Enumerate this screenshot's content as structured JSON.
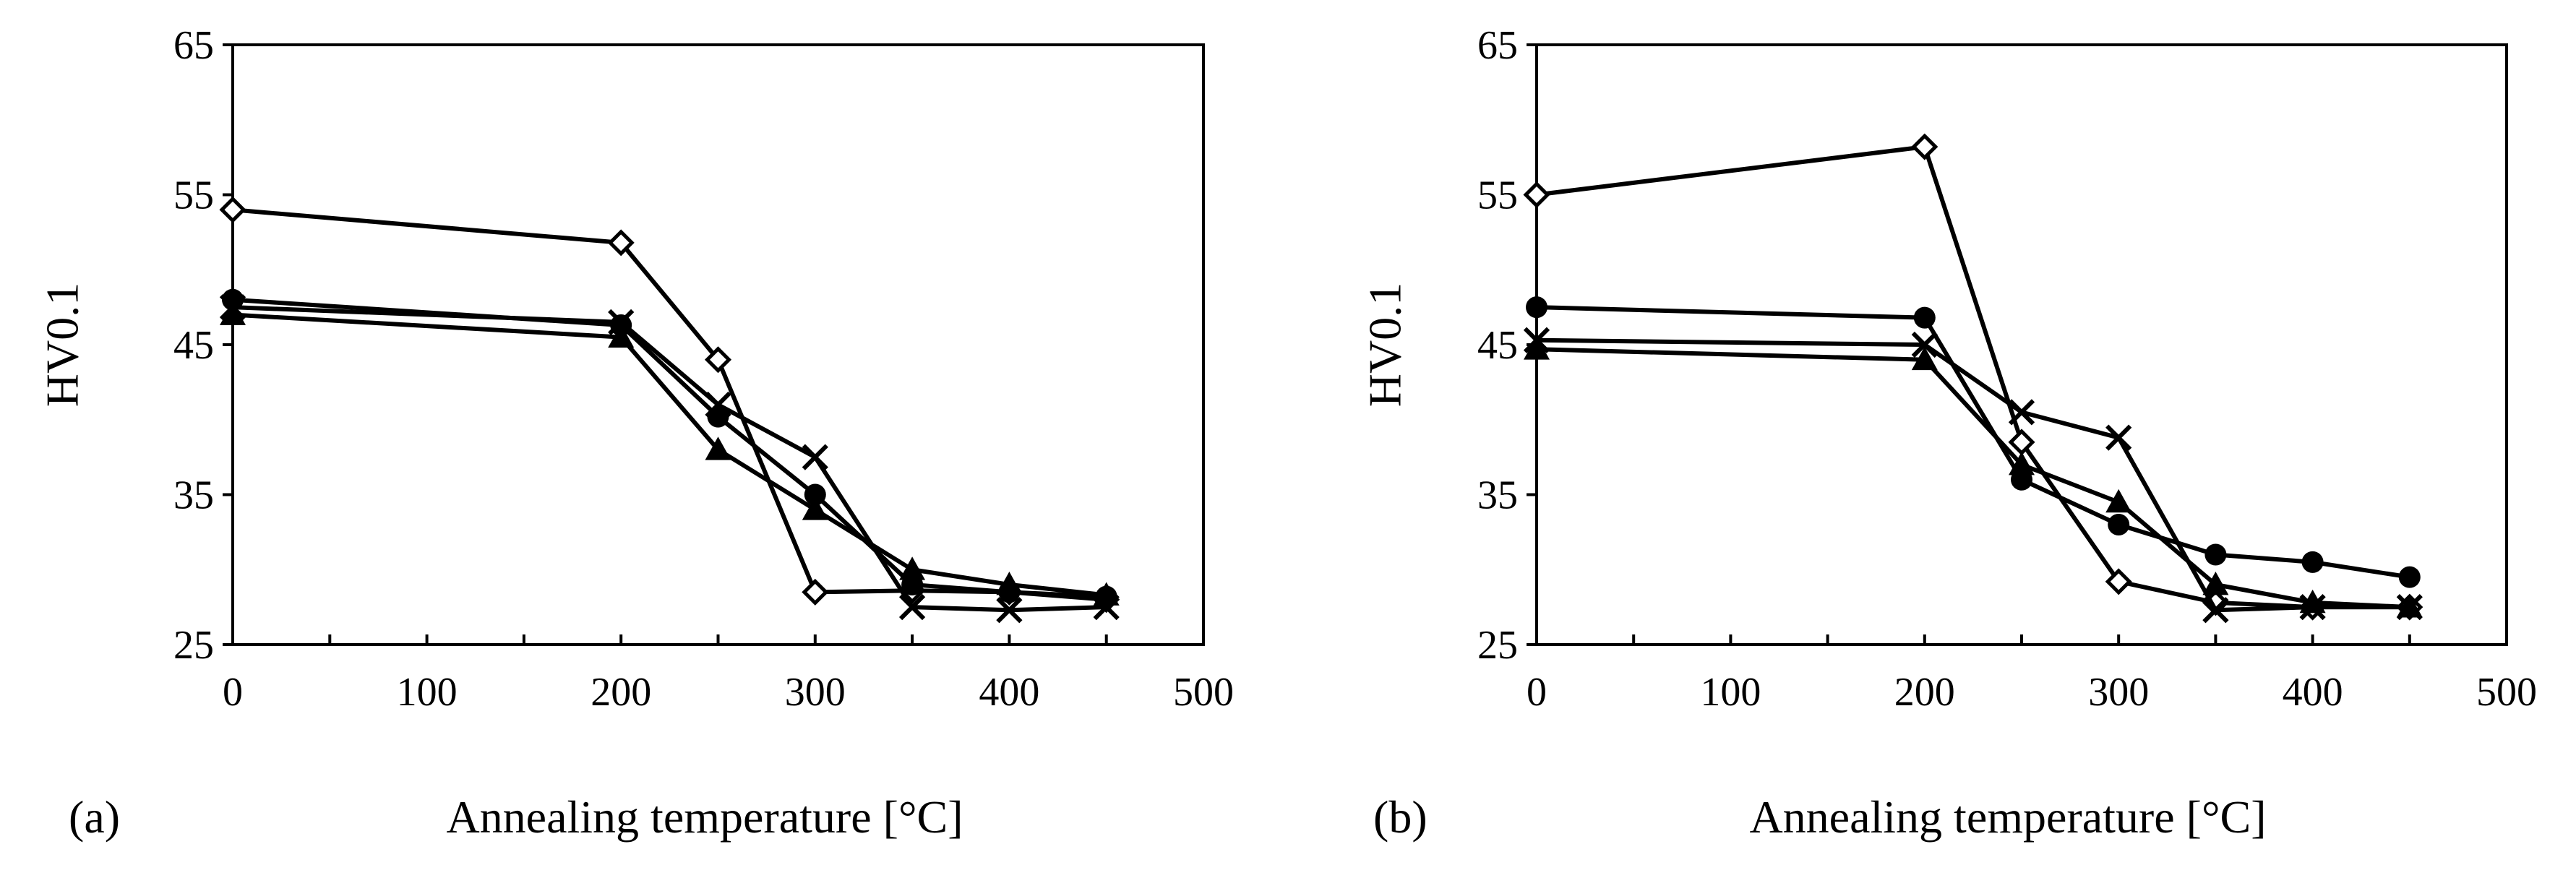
{
  "chart_data": [
    {
      "type": "line",
      "panel_label": "(a)",
      "xlabel": "Annealing temperature [°C]",
      "ylabel": "HV0.1",
      "xlim": [
        0,
        500
      ],
      "ylim": [
        25,
        65
      ],
      "xticks": [
        0,
        100,
        200,
        300,
        400,
        500
      ],
      "yticks": [
        25,
        35,
        45,
        55,
        65
      ],
      "grid": false,
      "series": [
        {
          "name": "open diamond",
          "marker": "diamond-open",
          "x": [
            0,
            200,
            250,
            300,
            350,
            400,
            450
          ],
          "y": [
            54,
            51.8,
            44,
            28.5,
            28.6,
            28.5,
            28
          ]
        },
        {
          "name": "filled circle",
          "marker": "circle",
          "x": [
            0,
            200,
            250,
            300,
            350,
            400,
            450
          ],
          "y": [
            48,
            46.3,
            40.2,
            35,
            29,
            28.5,
            28.2
          ]
        },
        {
          "name": "filled triangle",
          "marker": "triangle",
          "x": [
            0,
            200,
            250,
            300,
            350,
            400,
            450
          ],
          "y": [
            47,
            45.5,
            38,
            34,
            30,
            29,
            28.3
          ]
        },
        {
          "name": "cross",
          "marker": "x",
          "x": [
            0,
            200,
            250,
            300,
            350,
            400,
            450
          ],
          "y": [
            47.5,
            46.5,
            41,
            37.5,
            27.5,
            27.3,
            27.5
          ]
        }
      ]
    },
    {
      "type": "line",
      "panel_label": "(b)",
      "xlabel": "Annealing temperature [°C]",
      "ylabel": "HV0.1",
      "xlim": [
        0,
        500
      ],
      "ylim": [
        25,
        65
      ],
      "xticks": [
        0,
        100,
        200,
        300,
        400,
        500
      ],
      "yticks": [
        25,
        35,
        45,
        55,
        65
      ],
      "grid": false,
      "series": [
        {
          "name": "open diamond",
          "marker": "diamond-open",
          "x": [
            0,
            200,
            250,
            300,
            350,
            400,
            450
          ],
          "y": [
            55,
            58.2,
            38.5,
            29.2,
            27.8,
            27.5,
            27.5
          ]
        },
        {
          "name": "filled circle",
          "marker": "circle",
          "x": [
            0,
            200,
            250,
            300,
            350,
            400,
            450
          ],
          "y": [
            47.5,
            46.8,
            36,
            33,
            31,
            30.5,
            29.5
          ]
        },
        {
          "name": "filled triangle",
          "marker": "triangle",
          "x": [
            0,
            200,
            250,
            300,
            350,
            400,
            450
          ],
          "y": [
            44.7,
            44,
            37,
            34.5,
            29,
            27.8,
            27.5
          ]
        },
        {
          "name": "cross",
          "marker": "x",
          "x": [
            0,
            200,
            250,
            300,
            350,
            400,
            450
          ],
          "y": [
            45.3,
            45,
            40.5,
            38.8,
            27.3,
            27.5,
            27.5
          ]
        }
      ]
    }
  ]
}
